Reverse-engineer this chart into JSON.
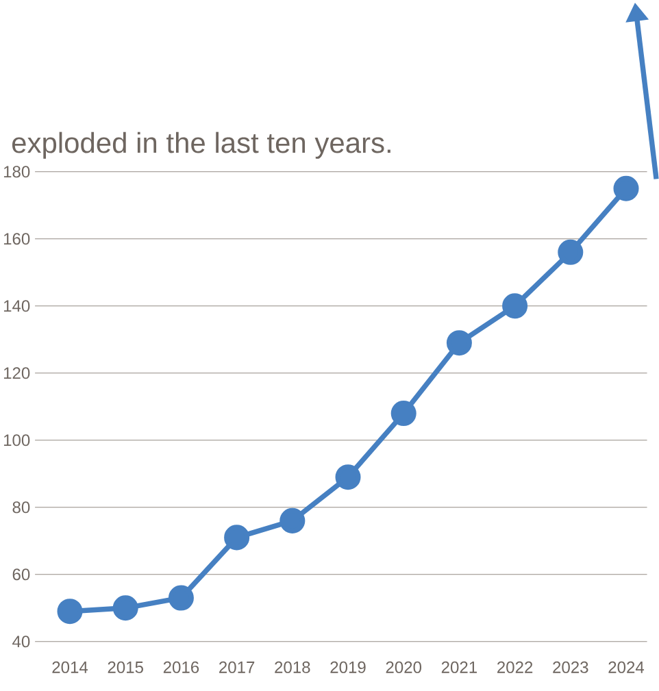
{
  "chart_data": {
    "type": "line",
    "title": "exploded in the last ten years.",
    "categories": [
      "2014",
      "2015",
      "2016",
      "2017",
      "2018",
      "2019",
      "2020",
      "2021",
      "2022",
      "2023",
      "2024"
    ],
    "series": [
      {
        "color": "#4680c2",
        "values": [
          49,
          50,
          53,
          71,
          76,
          89,
          108,
          129,
          140,
          156,
          175
        ]
      }
    ],
    "ylim": [
      40,
      180
    ],
    "yticks": [
      40,
      60,
      80,
      100,
      120,
      140,
      160,
      180
    ],
    "grid": "y",
    "marker": "circle",
    "line_style": "solid"
  }
}
